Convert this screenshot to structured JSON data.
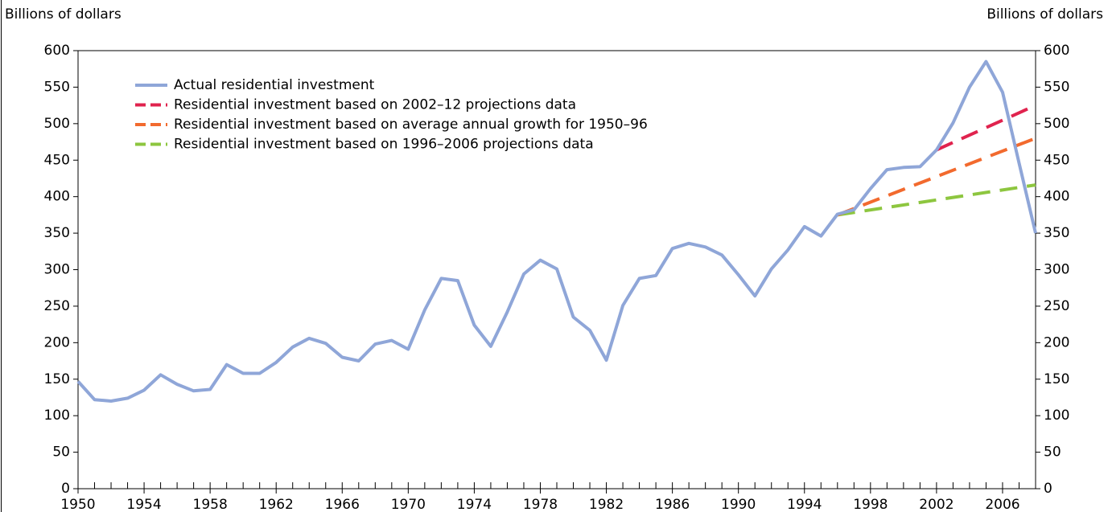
{
  "chart_data": {
    "type": "line",
    "ylabel": "Billions of dollars",
    "y2label": "Billions of dollars",
    "xlim": [
      1950,
      2008
    ],
    "xticks": [
      1950,
      1954,
      1958,
      1962,
      1966,
      1970,
      1974,
      1978,
      1982,
      1986,
      1990,
      1994,
      1998,
      2002,
      2006
    ],
    "ylim": [
      0,
      600
    ],
    "yticks": [
      0,
      50,
      100,
      150,
      200,
      250,
      300,
      350,
      400,
      450,
      500,
      550,
      600
    ],
    "y2lim": [
      0,
      600
    ],
    "y2ticks": [
      0,
      50,
      100,
      150,
      200,
      250,
      300,
      350,
      400,
      450,
      500,
      550,
      600
    ],
    "legend": "upper left",
    "series": [
      {
        "name": "Actual residential investment",
        "color": "#8fa6d8",
        "dashed": false,
        "x": [
          1950,
          1951,
          1952,
          1953,
          1954,
          1955,
          1956,
          1957,
          1958,
          1959,
          1960,
          1961,
          1962,
          1963,
          1964,
          1965,
          1966,
          1967,
          1968,
          1969,
          1970,
          1971,
          1972,
          1973,
          1974,
          1975,
          1976,
          1977,
          1978,
          1979,
          1980,
          1981,
          1982,
          1983,
          1984,
          1985,
          1986,
          1987,
          1988,
          1989,
          1990,
          1991,
          1992,
          1993,
          1994,
          1995,
          1996,
          1997,
          1998,
          1999,
          2000,
          2001,
          2002,
          2003,
          2004,
          2005,
          2006,
          2007,
          2008
        ],
        "values": [
          147,
          122,
          120,
          124,
          135,
          156,
          143,
          134,
          136,
          170,
          158,
          158,
          173,
          194,
          206,
          199,
          180,
          175,
          198,
          203,
          191,
          245,
          288,
          285,
          224,
          195,
          242,
          294,
          313,
          301,
          235,
          217,
          176,
          251,
          288,
          292,
          329,
          336,
          331,
          320,
          293,
          264,
          301,
          327,
          359,
          346,
          376,
          382,
          411,
          437,
          440,
          441,
          464,
          501,
          550,
          585,
          543,
          446,
          350
        ]
      },
      {
        "name": "Residential investment based on 2002–12 projections data",
        "color": "#e0234e",
        "dashed": true,
        "x": [
          2002,
          2008
        ],
        "values": [
          464,
          525
        ]
      },
      {
        "name": "Residential investment based on average annual growth for 1950–96",
        "color": "#f26a2e",
        "dashed": true,
        "x": [
          1996,
          2008
        ],
        "values": [
          375,
          480
        ]
      },
      {
        "name": "Residential investment based on 1996–2006 projections data",
        "color": "#8dc63f",
        "dashed": true,
        "x": [
          1996,
          2008
        ],
        "values": [
          375,
          416
        ]
      }
    ]
  }
}
